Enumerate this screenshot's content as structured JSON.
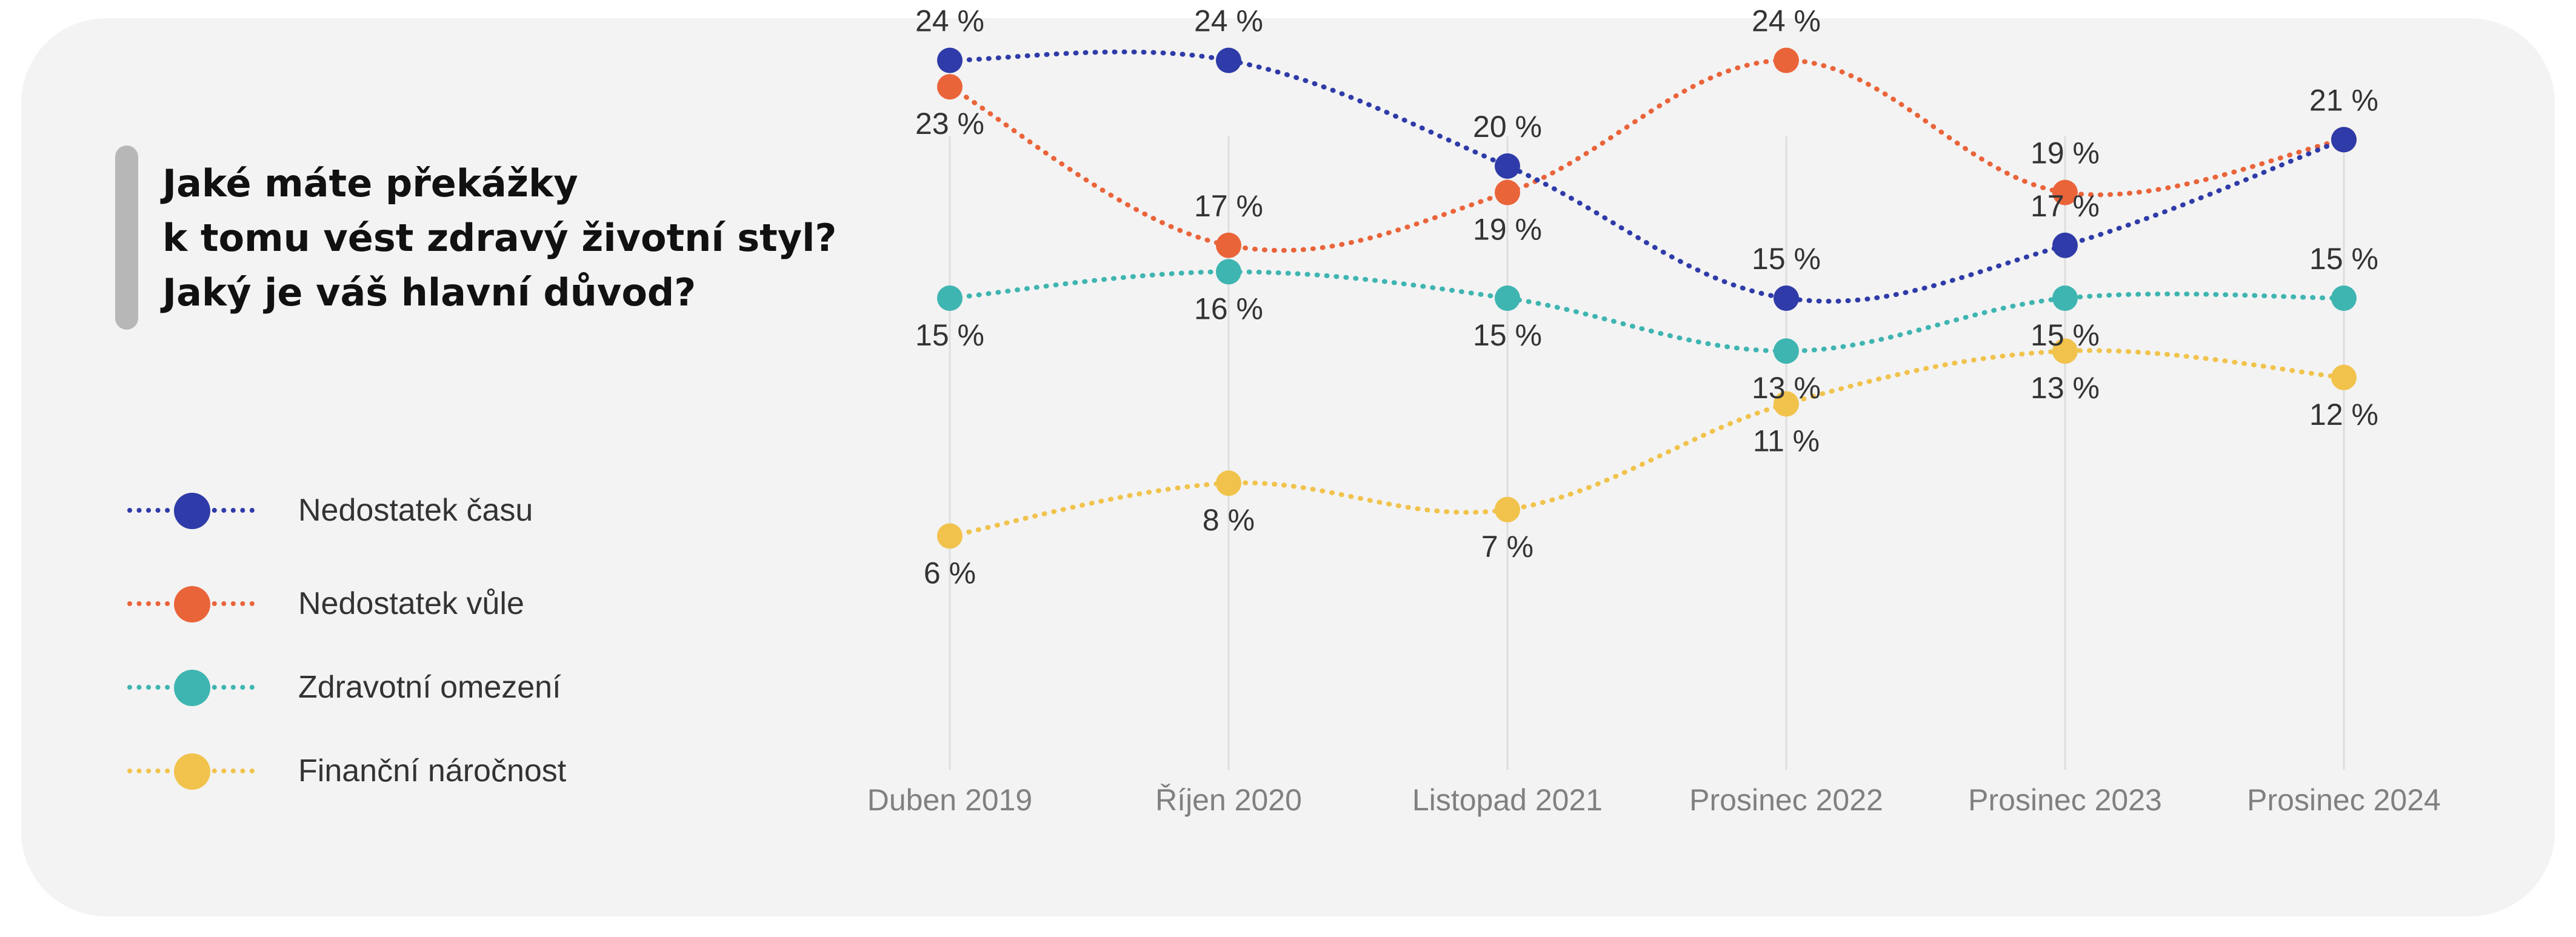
{
  "title_lines": [
    "Jaké máte překážky",
    "k tomu vést zdravý životní styl?",
    "Jaký je váš hlavní důvod?"
  ],
  "chart_data": {
    "type": "line",
    "categories": [
      "Duben 2019",
      "Říjen 2020",
      "Listopad 2021",
      "Prosinec 2022",
      "Prosinec 2023",
      "Prosinec 2024"
    ],
    "value_suffix": " %",
    "line_style": "dotted",
    "grid": "vertical",
    "legend_position": "left",
    "series": [
      {
        "name": "Nedostatek času",
        "color": "#2f3ba8",
        "values": [
          24,
          24,
          20,
          15,
          17,
          21
        ],
        "label_pos": [
          "above",
          "above",
          "above",
          "above",
          "above",
          "none"
        ]
      },
      {
        "name": "Nedostatek vůle",
        "color": "#ea643a",
        "values": [
          23,
          17,
          19,
          24,
          19,
          21
        ],
        "label_pos": [
          "below",
          "above",
          "below",
          "above",
          "above",
          "above"
        ]
      },
      {
        "name": "Zdravotní omezení",
        "color": "#3fb5b1",
        "values": [
          15,
          16,
          15,
          13,
          15,
          15
        ],
        "label_pos": [
          "below",
          "below",
          "below",
          "below",
          "below",
          "above"
        ]
      },
      {
        "name": "Finanční náročnost",
        "color": "#f1c34c",
        "values": [
          6,
          8,
          7,
          11,
          13,
          12
        ],
        "label_pos": [
          "below",
          "below",
          "below",
          "below",
          "below",
          "below"
        ]
      }
    ]
  }
}
